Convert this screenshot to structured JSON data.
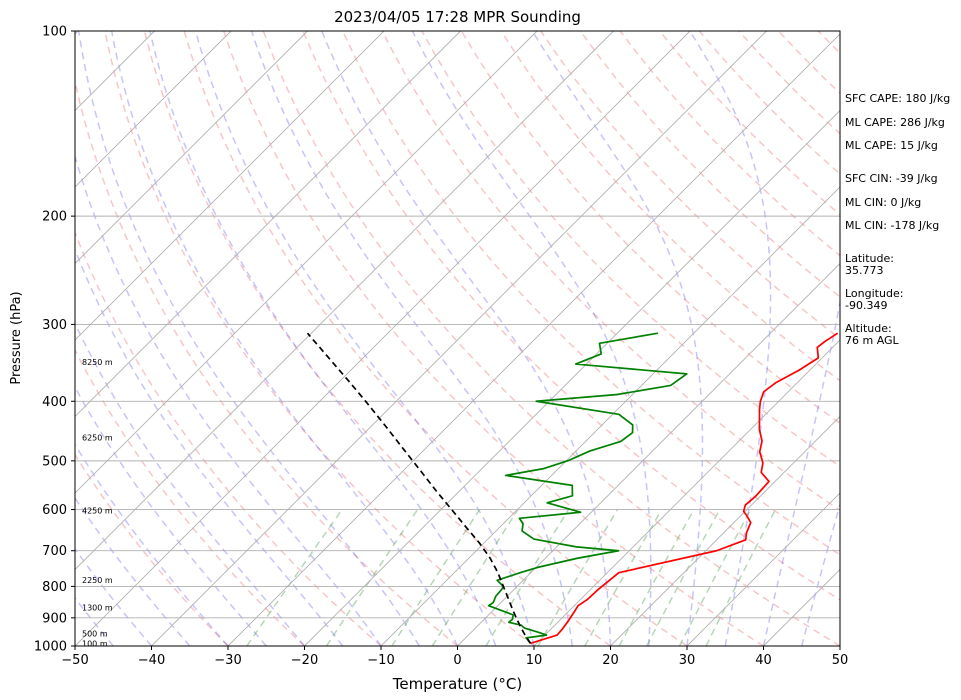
{
  "chart_data": {
    "type": "line",
    "title": "2023/04/05 17:28 MPR Sounding",
    "xlabel": "Temperature (°C)",
    "ylabel": "Pressure (hPa)",
    "xlim": [
      -50,
      50
    ],
    "ylim": [
      1000,
      100
    ],
    "y_scale": "log",
    "skew_t": true,
    "grid": true,
    "x_ticks": [
      "−50",
      "−40",
      "−30",
      "−20",
      "−10",
      "0",
      "10",
      "20",
      "30",
      "40",
      "50"
    ],
    "y_ticks": [
      "1000",
      "900",
      "800",
      "700",
      "600",
      "500",
      "400",
      "300",
      "200",
      "100"
    ],
    "height_labels": [
      {
        "p": 990,
        "label": "100 m"
      },
      {
        "p": 955,
        "label": "500 m"
      },
      {
        "p": 866,
        "label": "1300 m"
      },
      {
        "p": 781,
        "label": "2250 m"
      },
      {
        "p": 602,
        "label": "4250 m"
      },
      {
        "p": 458,
        "label": "6250 m"
      },
      {
        "p": 345,
        "label": "8250 m"
      }
    ],
    "series": [
      {
        "color": "#ff0000",
        "points": [
          [
            990,
            9.2
          ],
          [
            960,
            11.6
          ],
          [
            940,
            11.5
          ],
          [
            910,
            11.2
          ],
          [
            880,
            10.8
          ],
          [
            860,
            10.5
          ],
          [
            840,
            10.9
          ],
          [
            810,
            11.0
          ],
          [
            790,
            11.2
          ],
          [
            760,
            11.5
          ],
          [
            700,
            21.4
          ],
          [
            672,
            23.8
          ],
          [
            655,
            23.0
          ],
          [
            630,
            22.2
          ],
          [
            612,
            20.6
          ],
          [
            604,
            19.8
          ],
          [
            590,
            19.2
          ],
          [
            571,
            19.4
          ],
          [
            540,
            19.2
          ],
          [
            522,
            17.0
          ],
          [
            504,
            16.0
          ],
          [
            483,
            14.1
          ],
          [
            464,
            13.0
          ],
          [
            445,
            11.2
          ],
          [
            425,
            9.6
          ],
          [
            413,
            8.6
          ],
          [
            400,
            7.6
          ],
          [
            386,
            6.8
          ],
          [
            373,
            7.2
          ],
          [
            356,
            8.6
          ],
          [
            340,
            9.5
          ],
          [
            327,
            8.0
          ],
          [
            320,
            8.2
          ],
          [
            310,
            8.8
          ]
        ]
      },
      {
        "color": "#008000",
        "points": [
          [
            990,
            9.2
          ],
          [
            970,
            7.9
          ],
          [
            960,
            10.2
          ],
          [
            950,
            8.8
          ],
          [
            935,
            6.4
          ],
          [
            925,
            5.6
          ],
          [
            915,
            3.6
          ],
          [
            905,
            3.7
          ],
          [
            890,
            3.2
          ],
          [
            860,
            -1.2
          ],
          [
            850,
            -1.0
          ],
          [
            830,
            -1.5
          ],
          [
            810,
            -1.6
          ],
          [
            800,
            -1.8
          ],
          [
            782,
            -3.4
          ],
          [
            760,
            -1.4
          ],
          [
            745,
            0.2
          ],
          [
            720,
            4.2
          ],
          [
            700,
            8.6
          ],
          [
            690,
            2.6
          ],
          [
            670,
            -4.0
          ],
          [
            650,
            -6.6
          ],
          [
            633,
            -7.4
          ],
          [
            620,
            -8.6
          ],
          [
            606,
            -1.4
          ],
          [
            585,
            -7.0
          ],
          [
            570,
            -4.6
          ],
          [
            548,
            -6.0
          ],
          [
            528,
            -16.0
          ],
          [
            515,
            -12.0
          ],
          [
            500,
            -9.8
          ],
          [
            482,
            -8.2
          ],
          [
            465,
            -5.4
          ],
          [
            450,
            -5.0
          ],
          [
            437,
            -6.0
          ],
          [
            420,
            -9.2
          ],
          [
            400,
            -21.7
          ],
          [
            390,
            -12.0
          ],
          [
            377,
            -6.2
          ],
          [
            361,
            -5.6
          ],
          [
            348,
            -21.4
          ],
          [
            335,
            -19.4
          ],
          [
            322,
            -21.0
          ],
          [
            310,
            -14.7
          ]
        ]
      },
      {
        "color": "#000000",
        "dashed": true,
        "points": [
          [
            990,
            9.2
          ],
          [
            960,
            7.4
          ],
          [
            930,
            5.7
          ],
          [
            900,
            4.0
          ],
          [
            870,
            2.3
          ],
          [
            840,
            0.6
          ],
          [
            800,
            -1.8
          ],
          [
            760,
            -4.3
          ],
          [
            720,
            -7.2
          ],
          [
            680,
            -10.6
          ],
          [
            640,
            -14.5
          ],
          [
            600,
            -18.6
          ],
          [
            560,
            -23.0
          ],
          [
            520,
            -27.6
          ],
          [
            480,
            -32.6
          ],
          [
            440,
            -38.0
          ],
          [
            400,
            -44.0
          ],
          [
            370,
            -49.0
          ],
          [
            340,
            -54.5
          ],
          [
            310,
            -60.5
          ]
        ]
      }
    ],
    "annotations": [
      "SFC CAPE: 180 J/kg",
      "ML CAPE: 286 J/kg",
      "ML CAPE: 15 J/kg",
      "SFC CIN: -39 J/kg",
      "ML CIN: 0 J/kg",
      "ML CIN: -178 J/kg"
    ],
    "site": {
      "lat_label": "Latitude:",
      "lat_value": "35.773",
      "lon_label": "Longitude:",
      "lon_value": "-90.349",
      "alt_label": "Altitude:",
      "alt_value": "76 m AGL"
    }
  }
}
